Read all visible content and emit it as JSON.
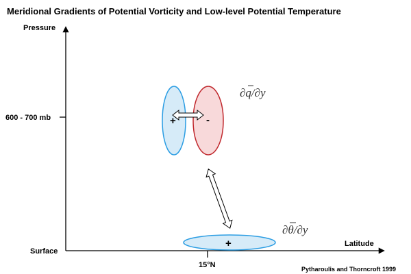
{
  "title": "Meridional Gradients of Potential Vorticity and Low-level Potential Temperature",
  "axes": {
    "y_label": "Pressure",
    "x_label": "Latitude",
    "y_tick_level": "600 - 700 mb",
    "y_tick_surface": "Surface",
    "x_tick": "15°N"
  },
  "features": {
    "pv_positive_sign": "+",
    "pv_negative_sign": "-",
    "theta_sign": "+",
    "pv_gradient_label": {
      "num": "∂",
      "var": "q",
      "den": "/∂y"
    },
    "theta_gradient_label": {
      "num": "∂",
      "var": "θ",
      "den": "/∂y"
    }
  },
  "credit": "Pytharoulis and Thorncroft 1999",
  "colors": {
    "positive_fill": "#d6ebf8",
    "positive_stroke": "#2b9de3",
    "negative_fill": "#f8d9da",
    "negative_stroke": "#c0282d",
    "axis": "#000000"
  }
}
